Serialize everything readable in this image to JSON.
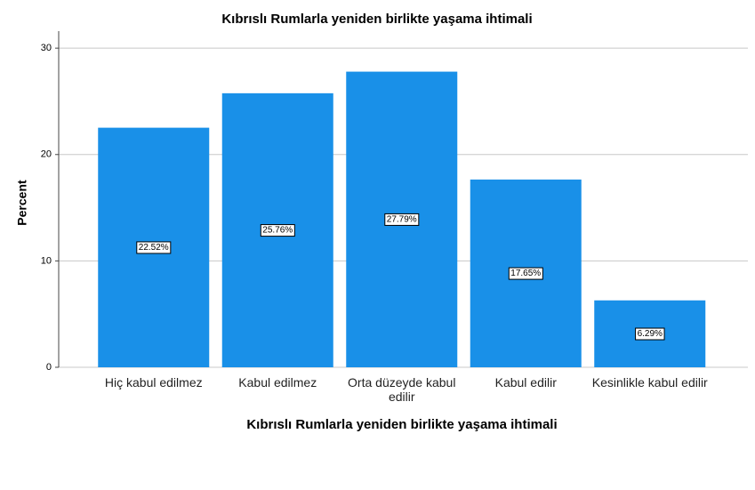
{
  "chart_data": {
    "type": "bar",
    "title": "Kıbrıslı Rumlarla yeniden birlikte yaşama ihtimali",
    "x_label": "Kıbrıslı Rumlarla yeniden birlikte yaşama ihtimali",
    "y_label": "Percent",
    "categories": [
      "Hiç kabul edilmez",
      "Kabul edilmez",
      "Orta düzeyde kabul edilir",
      "Kabul edilir",
      "Kesinlikle kabul edilir"
    ],
    "values": [
      22.52,
      25.76,
      27.79,
      17.65,
      6.29
    ],
    "value_labels": [
      "22.52%",
      "25.76%",
      "27.79%",
      "17.65%",
      "6.29%"
    ],
    "color": "#1990e8",
    "ylim": [
      0,
      31.6
    ],
    "yticks": [
      0,
      10,
      20,
      30
    ],
    "grid": true
  }
}
